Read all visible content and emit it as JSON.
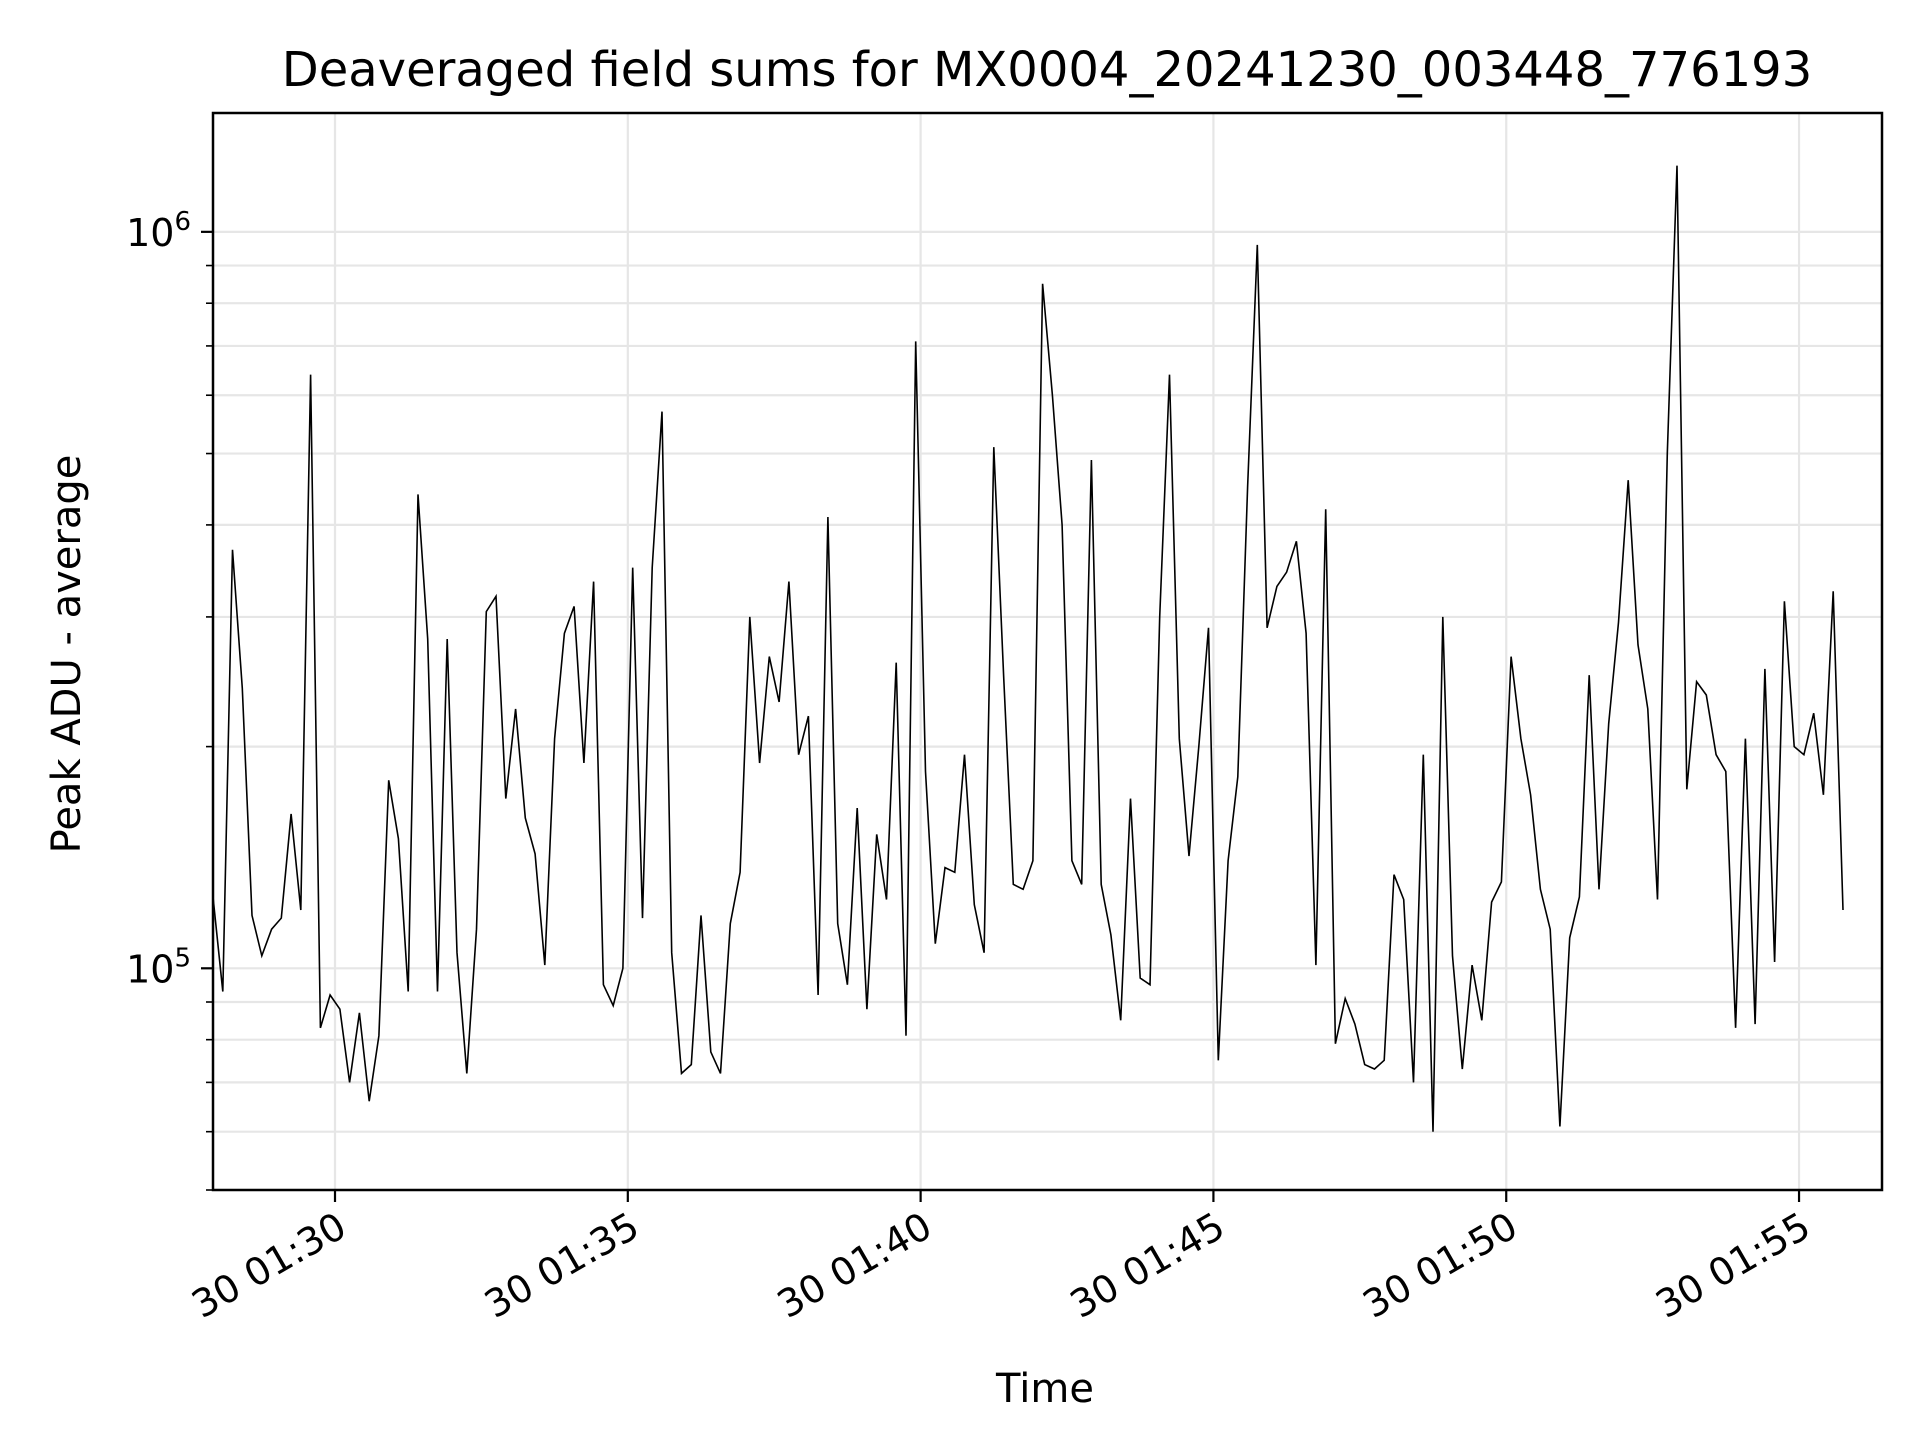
{
  "chart_data": {
    "type": "line",
    "title": "Deaveraged field sums for MX0004_20241230_003448_776193",
    "xlabel": "Time",
    "ylabel": "Peak ADU - average",
    "yscale": "log",
    "ylim": [
      50000,
      1450000
    ],
    "xlim": [
      "30 01:27:55",
      "30 01:56:25"
    ],
    "grid": true,
    "x_ticks": [
      "30 01:30",
      "30 01:35",
      "30 01:40",
      "30 01:45",
      "30 01:50",
      "30 01:55"
    ],
    "y_ticks": [
      {
        "base": "10",
        "exp": "5",
        "value": 100000
      },
      {
        "base": "10",
        "exp": "6",
        "value": 1000000
      }
    ],
    "line_color": "#000000",
    "series": [
      {
        "x_start": "30 01:27:55",
        "x_step_seconds": 10,
        "values": [
          125000,
          93000,
          370000,
          240000,
          118000,
          104000,
          113000,
          117000,
          162000,
          120000,
          640000,
          83000,
          92000,
          88000,
          70000,
          87000,
          66000,
          81000,
          180000,
          150000,
          93000,
          440000,
          280000,
          93000,
          280000,
          105000,
          72000,
          113000,
          305000,
          320000,
          170000,
          225000,
          160000,
          143000,
          101000,
          205000,
          285000,
          310000,
          190000,
          335000,
          95000,
          89000,
          100000,
          350000,
          117000,
          350000,
          570000,
          105000,
          72000,
          74000,
          118000,
          77000,
          72000,
          115000,
          135000,
          300000,
          190000,
          265000,
          230000,
          335000,
          195000,
          220000,
          92000,
          410000,
          115000,
          95000,
          165000,
          88000,
          152000,
          124000,
          260000,
          81000,
          710000,
          185000,
          108000,
          137000,
          135000,
          195000,
          122000,
          105000,
          510000,
          250000,
          130000,
          128000,
          140000,
          850000,
          600000,
          400000,
          140000,
          130000,
          490000,
          130000,
          111000,
          85000,
          170000,
          97000,
          95000,
          300000,
          640000,
          205000,
          142000,
          200000,
          290000,
          75000,
          140000,
          182000,
          450000,
          960000,
          290000,
          330000,
          345000,
          380000,
          285000,
          101000,
          420000,
          79000,
          91000,
          84000,
          74000,
          73000,
          75000,
          134000,
          124000,
          70000,
          195000,
          60000,
          300000,
          104000,
          73000,
          101000,
          85000,
          123000,
          131000,
          265000,
          205000,
          172000,
          128000,
          113000,
          61000,
          110000,
          125000,
          250000,
          128000,
          215000,
          295000,
          460000,
          275000,
          225000,
          124000,
          500000,
          1230000,
          175000,
          245000,
          235000,
          195000,
          185000,
          83000,
          205000,
          84000,
          255000,
          102000,
          315000,
          200000,
          195000,
          222000,
          172000,
          325000,
          120000
        ]
      }
    ]
  }
}
